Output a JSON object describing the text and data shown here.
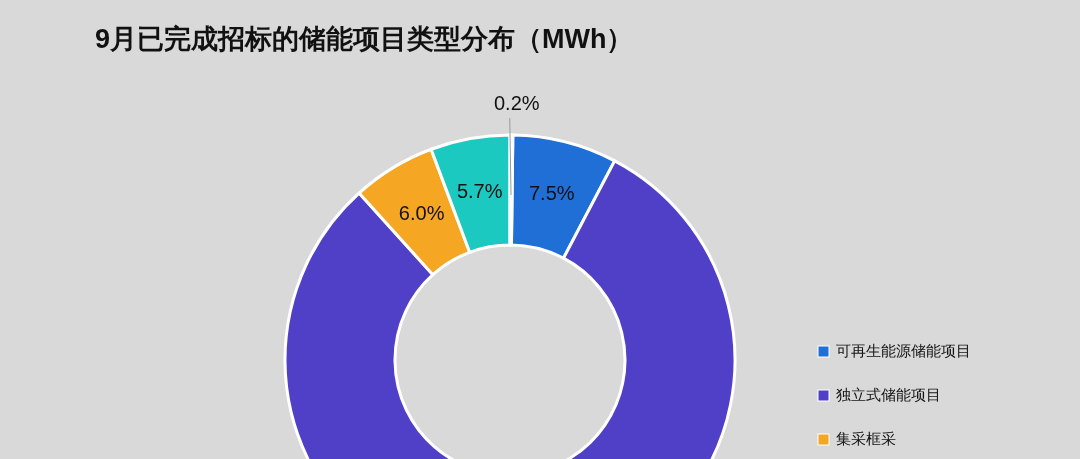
{
  "chart_data": {
    "type": "donut",
    "title": "9月已完成招标的储能项目类型分布（MWh）",
    "categories": [
      "可再生能源储能项目",
      "独立式储能项目",
      "集采框采",
      null,
      null
    ],
    "values": [
      7.5,
      80.6,
      6.0,
      5.7,
      0.2
    ],
    "colors": [
      "#1f6fd6",
      "#5040c8",
      "#f5a623",
      "#1cc9c0",
      "#2f5597"
    ],
    "value_labels": [
      "7.5%",
      null,
      "6.0%",
      "5.7%",
      "0.2%"
    ],
    "legend": "right"
  }
}
